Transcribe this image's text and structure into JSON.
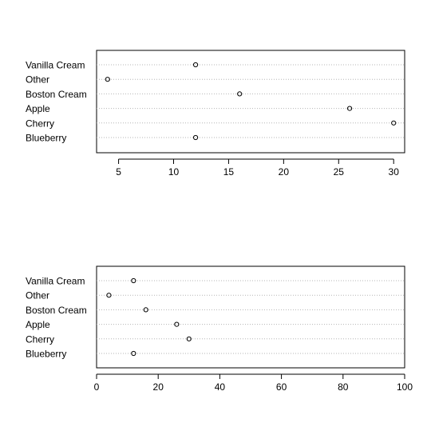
{
  "chart_data": [
    {
      "type": "scatter",
      "title": "",
      "xlabel": "",
      "ylabel": "",
      "categories": [
        "Vanilla Cream",
        "Other",
        "Boston Cream",
        "Apple",
        "Cherry",
        "Blueberry"
      ],
      "values": [
        12,
        4,
        16,
        26,
        30,
        12
      ],
      "xlim": [
        3,
        31
      ],
      "xticks": [
        5,
        10,
        15,
        20,
        25,
        30
      ],
      "grid": "dotted horizontal"
    },
    {
      "type": "scatter",
      "title": "",
      "xlabel": "",
      "ylabel": "",
      "categories": [
        "Vanilla Cream",
        "Other",
        "Boston Cream",
        "Apple",
        "Cherry",
        "Blueberry"
      ],
      "values": [
        12,
        4,
        16,
        26,
        30,
        12
      ],
      "xlim": [
        0,
        100
      ],
      "xticks": [
        0,
        20,
        40,
        60,
        80,
        100
      ],
      "grid": "dotted horizontal"
    }
  ]
}
